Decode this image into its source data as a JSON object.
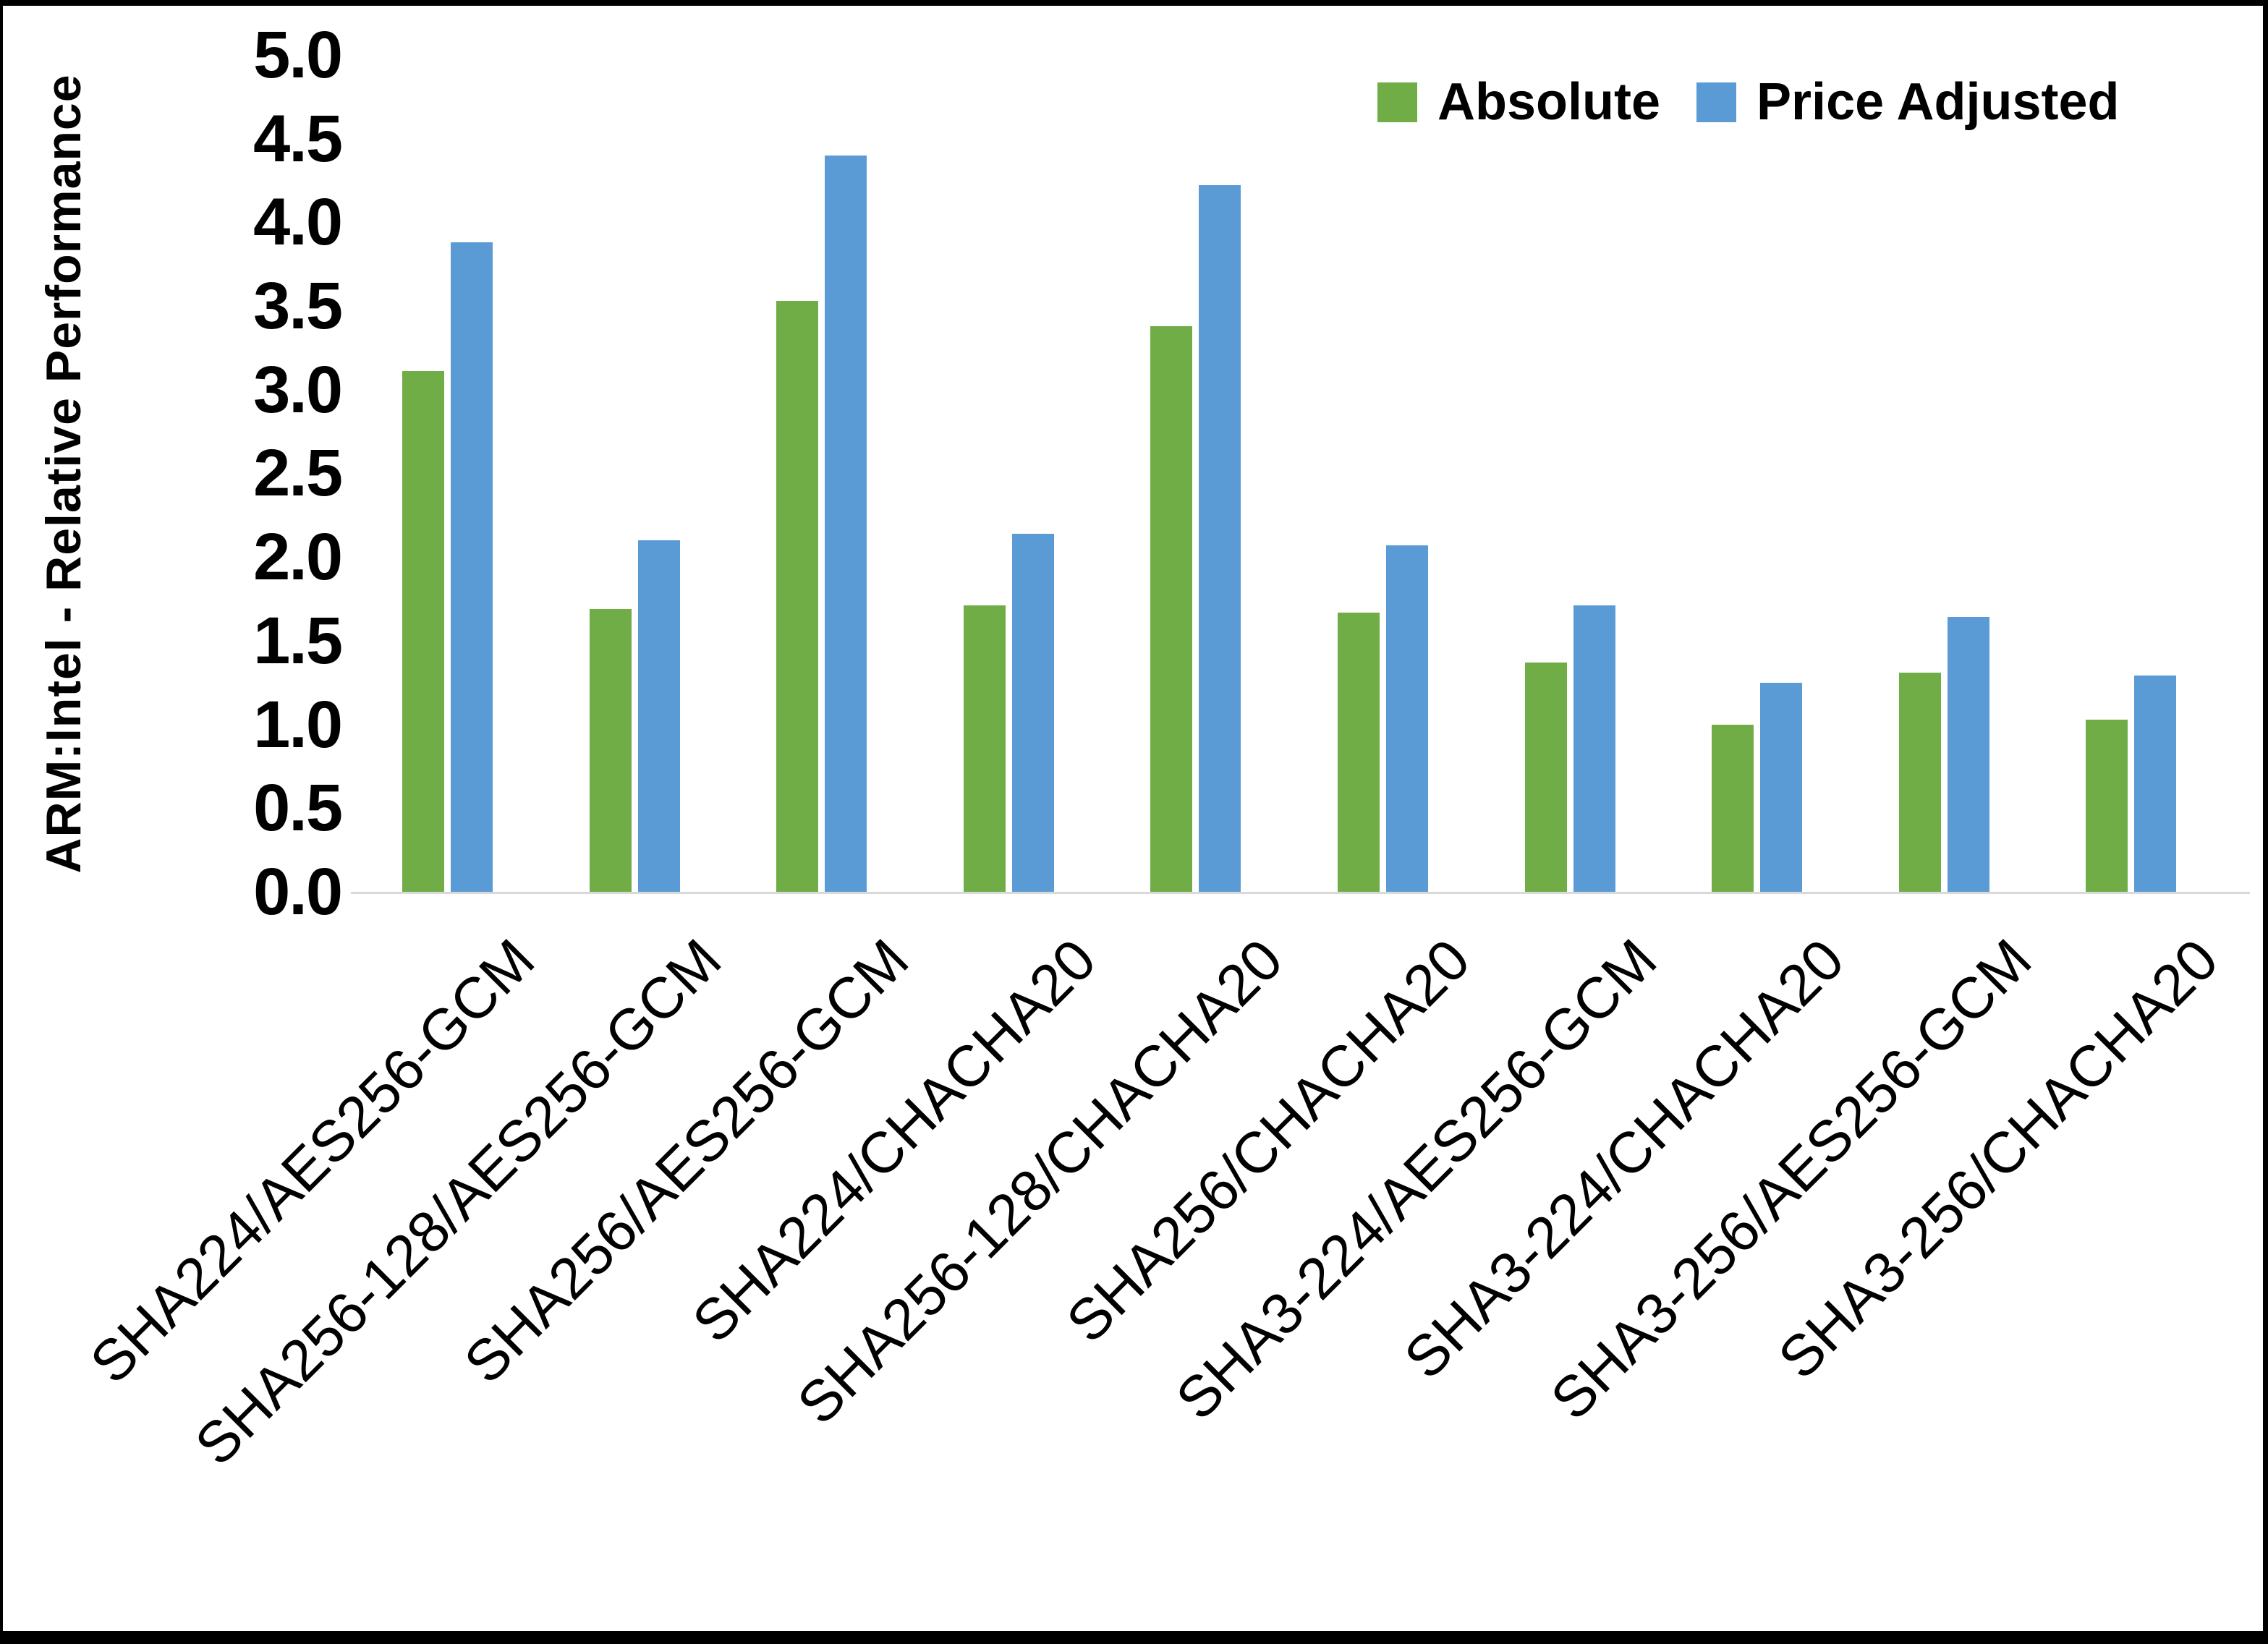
{
  "chart_data": {
    "type": "bar",
    "title": "",
    "ylabel": "ARM:Intel - Relative Performance",
    "xlabel": "",
    "categories": [
      "SHA224/AES256-GCM",
      "SHA256-128/AES256-GCM",
      "SHA256/AES256-GCM",
      "SHA224/CHACHA20",
      "SHA256-128/CHACHA20",
      "SHA256/CHACHA20",
      "SHA3-224/AES256-GCM",
      "SHA3-224/CHACHA20",
      "SHA3-256/AES256-GCM",
      "SHA3-256/CHACHA20"
    ],
    "series": [
      {
        "name": "Absolute",
        "color": "#70AD47",
        "values": [
          3.11,
          1.69,
          3.53,
          1.71,
          3.38,
          1.67,
          1.37,
          1.0,
          1.31,
          1.03
        ]
      },
      {
        "name": "Price Adjusted",
        "color": "#5B9BD5",
        "values": [
          3.88,
          2.1,
          4.4,
          2.14,
          4.22,
          2.07,
          1.71,
          1.25,
          1.64,
          1.29
        ]
      }
    ],
    "ylim": [
      0.0,
      5.0
    ],
    "ytick_step": 0.5,
    "ytick_labels": [
      "0.0",
      "0.5",
      "1.0",
      "1.5",
      "2.0",
      "2.5",
      "3.0",
      "3.5",
      "4.0",
      "4.5",
      "5.0"
    ],
    "grid": false,
    "legend_position": "top-right",
    "axis_line_color": "#d9d9d9",
    "text_color": "#000000"
  }
}
